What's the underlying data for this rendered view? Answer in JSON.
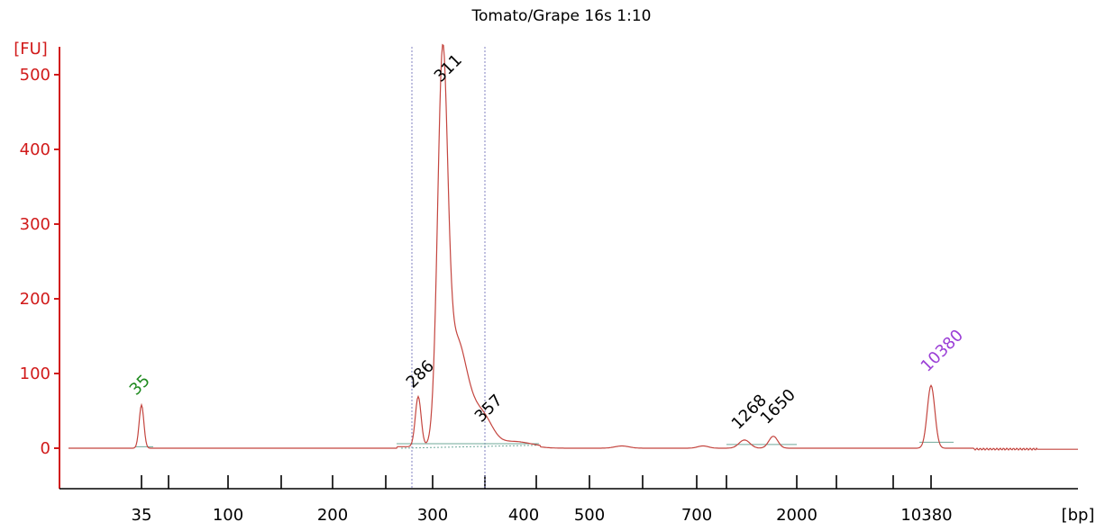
{
  "chart_data": {
    "type": "line",
    "title": "Tomato/Grape 16s 1:10",
    "ylabel": "[FU]",
    "xlabel": "[bp]",
    "ylim": [
      -55,
      520
    ],
    "y_ticks": [
      0,
      100,
      200,
      300,
      400,
      500
    ],
    "x_tick_labels": [
      "35",
      "100",
      "200",
      "300",
      "400",
      "500",
      "700",
      "2000",
      "10380"
    ],
    "grid": false,
    "colors": {
      "axis": "#d11a1a",
      "trace": "#c4453f",
      "lower_marker": "#1e8a1e",
      "upper_marker": "#9b3fd6",
      "peak_label": "#000000",
      "region_line": "#8080c0",
      "baseline": "#6fa89a"
    },
    "peaks": [
      {
        "label": "35",
        "x": 35,
        "fu": 58,
        "kind": "lower_marker"
      },
      {
        "label": "286",
        "x": 286,
        "fu": 67,
        "kind": "peak"
      },
      {
        "label": "311",
        "x": 311,
        "fu": 480,
        "kind": "peak"
      },
      {
        "label": "357",
        "x": 357,
        "fu": 27,
        "kind": "peak"
      },
      {
        "label": "1268",
        "x": 1268,
        "fu": 11,
        "kind": "peak"
      },
      {
        "label": "1650",
        "x": 1650,
        "fu": 16,
        "kind": "peak"
      },
      {
        "label": "10380",
        "x": 10380,
        "fu": 84,
        "kind": "upper_marker"
      }
    ],
    "region": {
      "from_bp": 280,
      "to_bp": 357
    }
  }
}
